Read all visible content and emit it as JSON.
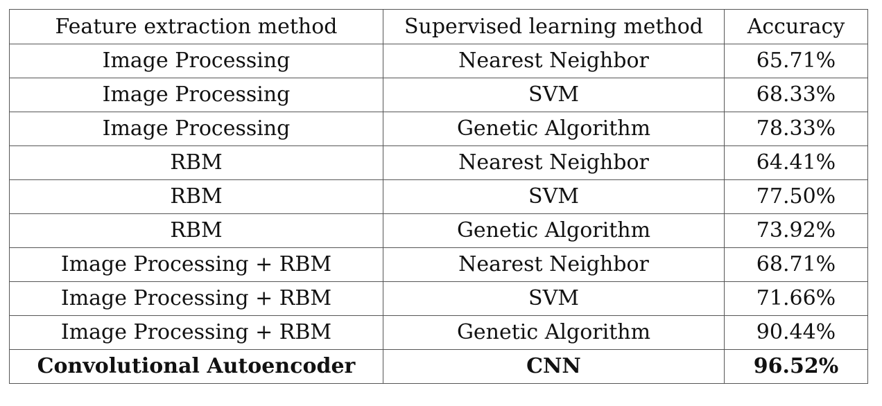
{
  "table": {
    "headers": [
      "Feature extraction method",
      "Supervised learning method",
      "Accuracy"
    ],
    "rows": [
      {
        "feature": "Image Processing",
        "method": "Nearest Neighbor",
        "accuracy": "65.71%"
      },
      {
        "feature": "Image Processing",
        "method": "SVM",
        "accuracy": "68.33%"
      },
      {
        "feature": "Image Processing",
        "method": "Genetic Algorithm",
        "accuracy": "78.33%"
      },
      {
        "feature": "RBM",
        "method": "Nearest Neighbor",
        "accuracy": "64.41%"
      },
      {
        "feature": "RBM",
        "method": "SVM",
        "accuracy": "77.50%"
      },
      {
        "feature": "RBM",
        "method": "Genetic Algorithm",
        "accuracy": "73.92%"
      },
      {
        "feature": "Image Processing + RBM",
        "method": "Nearest Neighbor",
        "accuracy": "68.71%"
      },
      {
        "feature": "Image Processing + RBM",
        "method": "SVM",
        "accuracy": "71.66%"
      },
      {
        "feature": "Image Processing + RBM",
        "method": "Genetic Algorithm",
        "accuracy": "90.44%"
      },
      {
        "feature": "Convolutional Autoencoder",
        "method": "CNN",
        "accuracy": "96.52%"
      }
    ]
  }
}
